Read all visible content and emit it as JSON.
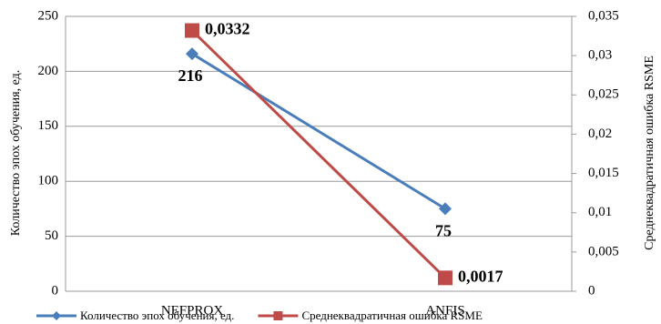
{
  "chart_data": {
    "type": "line",
    "categories": [
      "NEFPROX",
      "ANFIS"
    ],
    "series": [
      {
        "name": "Количество эпох обучения, ед.",
        "color": "#4a7ebb",
        "values": [
          216,
          75
        ]
      },
      {
        "name": "Среднеквадратичная ошибка RSME",
        "color": "#be4b48",
        "axis": "y2",
        "values": [
          0.0332,
          0.0017
        ],
        "value_labels": [
          "0,0332",
          "0,0017"
        ]
      }
    ],
    "ylabel": "Количество эпох обучения, ед.",
    "y2label": "Среднеквадратичная ошибка RSME",
    "ylim": [
      0,
      250
    ],
    "yticks": [
      0,
      50,
      100,
      150,
      200,
      250
    ],
    "y2lim": [
      0,
      0.035
    ],
    "y2ticks": [
      0,
      {
        "value": 0.005,
        "label": "0,005"
      },
      {
        "value": 0.01,
        "label": "0,01"
      },
      {
        "value": 0.015,
        "label": "0,015"
      },
      {
        "value": 0.02,
        "label": "0,02"
      },
      {
        "value": 0.025,
        "label": "0,025"
      },
      {
        "value": 0.03,
        "label": "0,03"
      },
      {
        "value": 0.035,
        "label": "0,035"
      }
    ],
    "grid": true,
    "legend": "bottom"
  }
}
